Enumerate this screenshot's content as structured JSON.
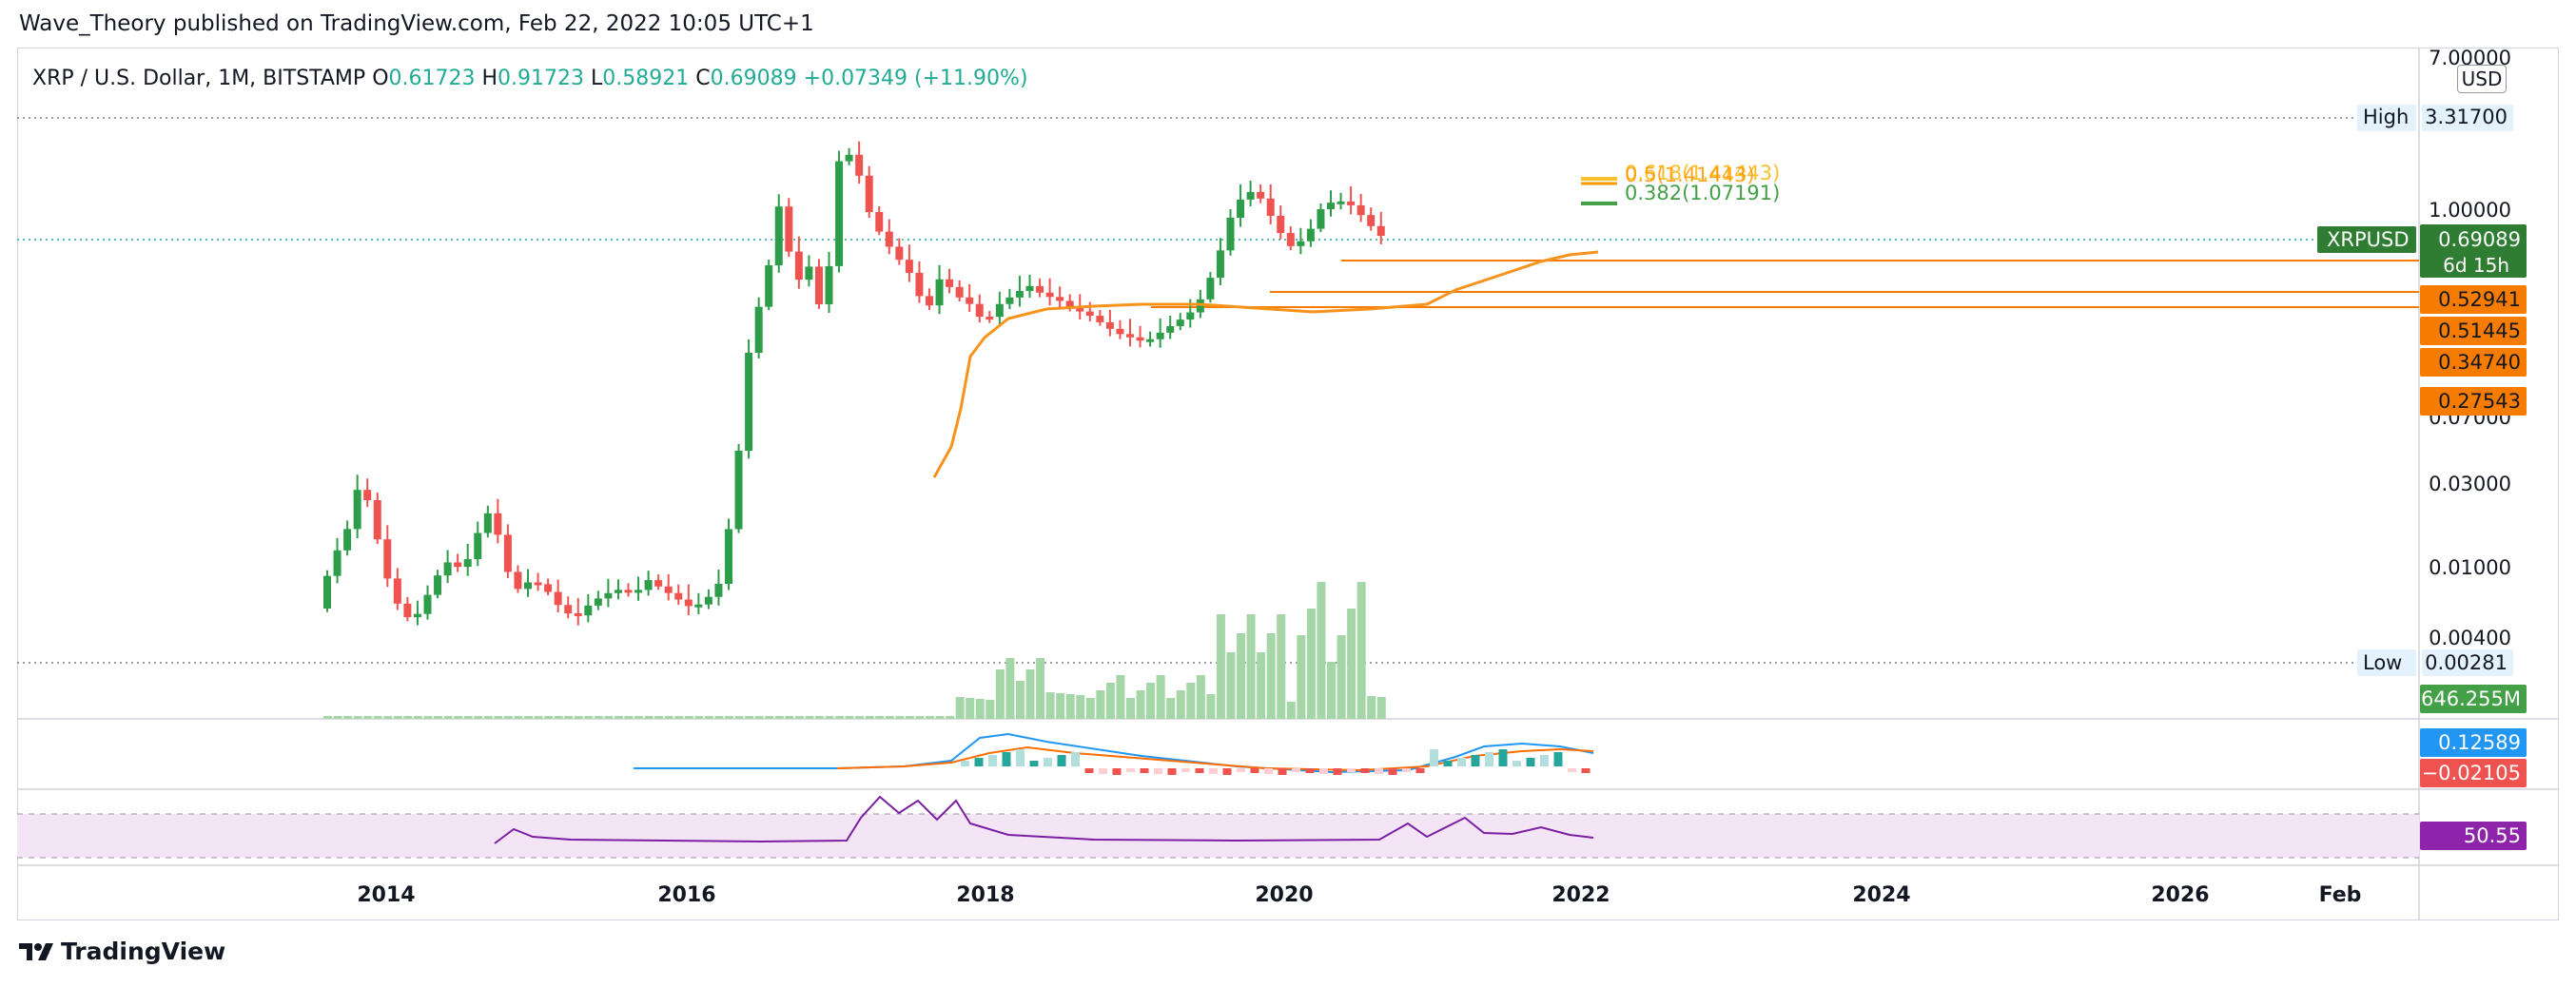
{
  "publisher": "Wave_Theory published on TradingView.com, Feb 22, 2022 10:05 UTC+1",
  "brand": "TradingView",
  "currency": "USD",
  "legend": {
    "symbol": "XRP / U.S. Dollar, 1M, BITSTAMP",
    "o_label": "O",
    "o": "0.61723",
    "h_label": "H",
    "h": "0.91723",
    "l_label": "L",
    "l": "0.58921",
    "c_label": "C",
    "c": "0.69089",
    "change": "+0.07349 (+11.90%)"
  },
  "colors": {
    "up": "#26a69a",
    "candle_up": "#2e9d4a",
    "down": "#ef5350",
    "ma": "#f7931a",
    "hline": "#f57c00",
    "volume": "#a5d6a7",
    "macd": "#2196f3",
    "signal": "#ff6d00",
    "rsi": "#7b1fa2"
  },
  "chart_data": {
    "type": "candlestick",
    "scale": "log",
    "x_ticks": [
      "2014",
      "2016",
      "2018",
      "2020",
      "2022",
      "2024",
      "2026",
      "Feb"
    ],
    "y_ticks": [
      "7.00000",
      "1.00000",
      "0.07000",
      "0.03000",
      "0.01000",
      "0.00400"
    ],
    "high_label": "High",
    "high_value": "3.31700",
    "low_label": "Low",
    "low_value": "0.00281",
    "last_label": "XRPUSD",
    "last_value": "0.69089",
    "countdown": "6d 15h",
    "levels": [
      "0.52941",
      "0.51445",
      "0.34740",
      "0.27543"
    ],
    "fib": [
      {
        "label": "0.618(1.41443)"
      },
      {
        "label": "0.5(1.41443)"
      },
      {
        "label": "0.382(1.07191)"
      }
    ],
    "volume_value": "646.255M",
    "macd_value": "0.12589",
    "hist_value": "−0.02105",
    "rsi_value": "50.55"
  }
}
